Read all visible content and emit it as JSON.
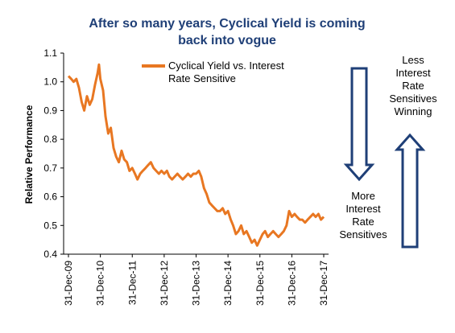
{
  "chart_data": {
    "type": "line",
    "title_lines": [
      "After so many years, Cyclical Yield is coming",
      "back into vogue"
    ],
    "ylabel": "Relative Performance",
    "xlabel": "",
    "ylim": [
      0.4,
      1.1
    ],
    "yticks": [
      "0.4",
      "0.5",
      "0.6",
      "0.7",
      "0.8",
      "0.9",
      "1.0",
      "1.1"
    ],
    "ytick_values": [
      0.4,
      0.5,
      0.6,
      0.7,
      0.8,
      0.9,
      1.0,
      1.1
    ],
    "xticks": [
      "31-Dec-09",
      "31-Dec-10",
      "31-Dec-11",
      "31-Dec-12",
      "31-Dec-13",
      "31-Dec-14",
      "31-Dec-15",
      "31-Dec-16",
      "31-Dec-17"
    ],
    "xlim": [
      "2009-12-31",
      "2017-12-31"
    ],
    "grid": false,
    "legend_position": "top-left",
    "series": [
      {
        "name": "Cyclical Yield vs. Interest Rate Sensitive",
        "color": "#E87722",
        "x": [
          "2009-12-31",
          "2010-01-31",
          "2010-02-28",
          "2010-03-31",
          "2010-04-30",
          "2010-05-31",
          "2010-06-30",
          "2010-07-31",
          "2010-08-31",
          "2010-09-30",
          "2010-10-31",
          "2010-11-30",
          "2010-12-15",
          "2010-12-31",
          "2011-01-31",
          "2011-02-28",
          "2011-03-31",
          "2011-04-30",
          "2011-05-31",
          "2011-06-30",
          "2011-07-31",
          "2011-08-31",
          "2011-09-30",
          "2011-10-31",
          "2011-11-30",
          "2011-12-31",
          "2012-01-31",
          "2012-02-29",
          "2012-03-31",
          "2012-04-30",
          "2012-05-31",
          "2012-06-30",
          "2012-07-31",
          "2012-08-31",
          "2012-09-30",
          "2012-10-31",
          "2012-11-30",
          "2012-12-31",
          "2013-01-31",
          "2013-02-28",
          "2013-03-31",
          "2013-04-30",
          "2013-05-31",
          "2013-06-30",
          "2013-07-31",
          "2013-08-31",
          "2013-09-30",
          "2013-10-31",
          "2013-11-30",
          "2013-12-31",
          "2014-01-31",
          "2014-02-28",
          "2014-03-31",
          "2014-04-30",
          "2014-05-31",
          "2014-06-30",
          "2014-07-31",
          "2014-08-31",
          "2014-09-30",
          "2014-10-31",
          "2014-11-30",
          "2014-12-31",
          "2015-01-31",
          "2015-02-28",
          "2015-03-31",
          "2015-04-30",
          "2015-05-31",
          "2015-06-30",
          "2015-07-31",
          "2015-08-31",
          "2015-09-30",
          "2015-10-31",
          "2015-11-30",
          "2015-12-31",
          "2016-01-31",
          "2016-02-29",
          "2016-03-31",
          "2016-04-30",
          "2016-05-31",
          "2016-06-30",
          "2016-07-31",
          "2016-08-31",
          "2016-09-30",
          "2016-10-31",
          "2016-11-30",
          "2016-12-31",
          "2017-01-31",
          "2017-02-28",
          "2017-03-31",
          "2017-04-30",
          "2017-05-31",
          "2017-06-30",
          "2017-07-31",
          "2017-08-31",
          "2017-09-30",
          "2017-10-31",
          "2017-11-30",
          "2017-12-31"
        ],
        "values": [
          1.02,
          1.01,
          1.0,
          1.01,
          0.98,
          0.93,
          0.9,
          0.95,
          0.92,
          0.94,
          0.99,
          1.03,
          1.06,
          1.01,
          0.97,
          0.88,
          0.82,
          0.84,
          0.77,
          0.74,
          0.72,
          0.76,
          0.73,
          0.72,
          0.69,
          0.7,
          0.68,
          0.66,
          0.68,
          0.69,
          0.7,
          0.71,
          0.72,
          0.7,
          0.69,
          0.68,
          0.69,
          0.68,
          0.69,
          0.67,
          0.66,
          0.67,
          0.68,
          0.67,
          0.66,
          0.67,
          0.68,
          0.67,
          0.68,
          0.68,
          0.69,
          0.67,
          0.63,
          0.61,
          0.58,
          0.57,
          0.56,
          0.55,
          0.55,
          0.56,
          0.54,
          0.55,
          0.52,
          0.5,
          0.47,
          0.48,
          0.5,
          0.47,
          0.48,
          0.46,
          0.44,
          0.45,
          0.43,
          0.45,
          0.47,
          0.48,
          0.46,
          0.47,
          0.48,
          0.47,
          0.46,
          0.47,
          0.48,
          0.5,
          0.55,
          0.53,
          0.54,
          0.53,
          0.52,
          0.52,
          0.51,
          0.52,
          0.53,
          0.54,
          0.53,
          0.54,
          0.52,
          0.53
        ]
      }
    ],
    "annotations": {
      "less_winning": [
        "Less",
        "Interest",
        "Rate",
        "Sensitives",
        "Winning"
      ],
      "more_winning": [
        "More",
        "Interest",
        "Rate",
        "Sensitives"
      ]
    },
    "colors": {
      "title": "#1F3F77",
      "arrow": "#1F3F77",
      "line": "#E87722"
    }
  }
}
